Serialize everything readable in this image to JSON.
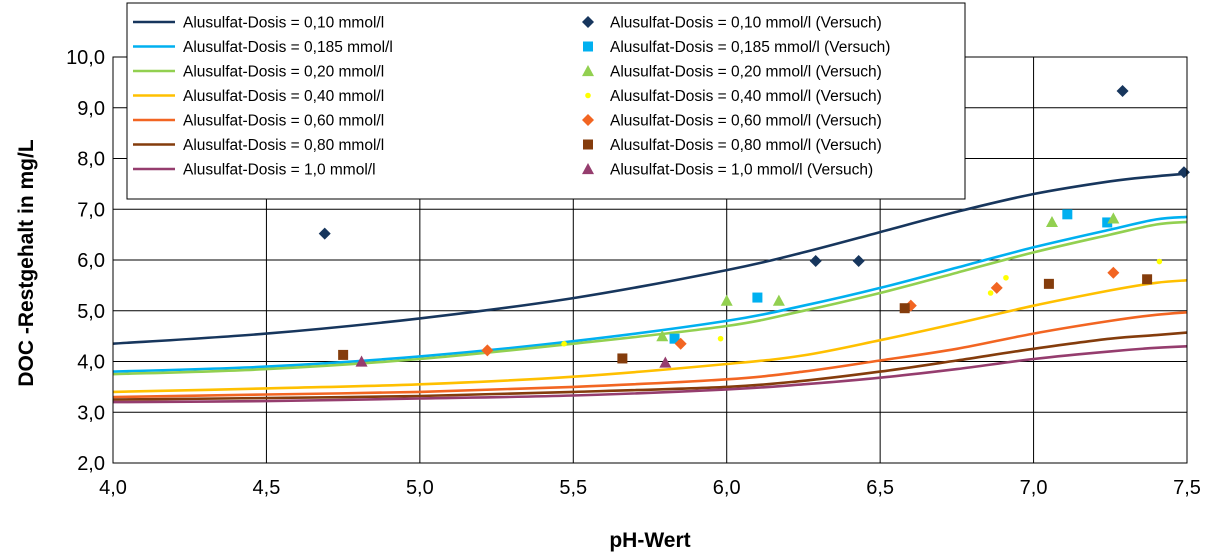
{
  "chart_data": {
    "type": "line",
    "xlabel": "pH-Wert",
    "ylabel": "DOC -Restgehalt in mg/L",
    "xlim": [
      4.0,
      7.5
    ],
    "ylim": [
      2.0,
      10.0
    ],
    "x_ticks": [
      "4,0",
      "4,5",
      "5,0",
      "5,5",
      "6,0",
      "6,5",
      "7,0",
      "7,5"
    ],
    "y_ticks": [
      "2,0",
      "3,0",
      "4,0",
      "5,0",
      "6,0",
      "7,0",
      "8,0",
      "9,0",
      "10,0"
    ],
    "grid": true,
    "legend_position": "top",
    "series": [
      {
        "name": "Alusulfat-Dosis = 0,10 mmol/l",
        "color": "#17365d",
        "x": [
          4.0,
          4.5,
          5.0,
          5.5,
          6.0,
          6.25,
          6.5,
          6.75,
          7.0,
          7.25,
          7.4,
          7.5
        ],
        "y": [
          4.35,
          4.55,
          4.85,
          5.25,
          5.8,
          6.15,
          6.55,
          6.95,
          7.3,
          7.55,
          7.65,
          7.7
        ]
      },
      {
        "name": "Alusulfat-Dosis = 0,185 mmol/l",
        "color": "#00b0f0",
        "x": [
          4.0,
          4.5,
          5.0,
          5.5,
          6.0,
          6.25,
          6.5,
          6.75,
          7.0,
          7.25,
          7.4,
          7.5
        ],
        "y": [
          3.8,
          3.9,
          4.1,
          4.4,
          4.8,
          5.1,
          5.45,
          5.85,
          6.25,
          6.6,
          6.8,
          6.85
        ]
      },
      {
        "name": "Alusulfat-Dosis = 0,20 mmol/l",
        "color": "#92d050",
        "x": [
          4.0,
          4.5,
          5.0,
          5.5,
          6.0,
          6.25,
          6.5,
          6.75,
          7.0,
          7.25,
          7.4,
          7.5
        ],
        "y": [
          3.75,
          3.85,
          4.05,
          4.35,
          4.7,
          5.0,
          5.35,
          5.75,
          6.15,
          6.5,
          6.7,
          6.75
        ]
      },
      {
        "name": "Alusulfat-Dosis = 0,40 mmol/l",
        "color": "#ffc000",
        "x": [
          4.0,
          4.5,
          5.0,
          5.5,
          6.0,
          6.25,
          6.5,
          6.75,
          7.0,
          7.25,
          7.4,
          7.5
        ],
        "y": [
          3.4,
          3.47,
          3.55,
          3.7,
          3.95,
          4.12,
          4.42,
          4.75,
          5.1,
          5.4,
          5.55,
          5.6
        ]
      },
      {
        "name": "Alusulfat-Dosis = 0,60 mmol/l",
        "color": "#f26522",
        "x": [
          4.0,
          4.5,
          5.0,
          5.5,
          6.0,
          6.25,
          6.5,
          6.75,
          7.0,
          7.25,
          7.4,
          7.5
        ],
        "y": [
          3.3,
          3.35,
          3.4,
          3.5,
          3.65,
          3.8,
          4.02,
          4.25,
          4.55,
          4.8,
          4.92,
          4.97
        ]
      },
      {
        "name": "Alusulfat-Dosis = 0,80 mmol/l",
        "color": "#843c0c",
        "x": [
          4.0,
          4.5,
          5.0,
          5.5,
          6.0,
          6.25,
          6.5,
          6.75,
          7.0,
          7.25,
          7.4,
          7.5
        ],
        "y": [
          3.25,
          3.28,
          3.32,
          3.4,
          3.5,
          3.62,
          3.8,
          4.02,
          4.25,
          4.45,
          4.52,
          4.57
        ]
      },
      {
        "name": "Alusulfat-Dosis = 1,0 mmol/l",
        "color": "#953d6e",
        "x": [
          4.0,
          4.5,
          5.0,
          5.5,
          6.0,
          6.25,
          6.5,
          6.75,
          7.0,
          7.25,
          7.4,
          7.5
        ],
        "y": [
          3.2,
          3.22,
          3.27,
          3.33,
          3.45,
          3.55,
          3.68,
          3.85,
          4.05,
          4.2,
          4.27,
          4.3
        ]
      }
    ],
    "points": [
      {
        "name": "Alusulfat-Dosis = 0,10 mmol/l (Versuch)",
        "color": "#17365d",
        "marker": "diamond",
        "x": [
          4.69,
          6.29,
          6.43,
          7.29,
          7.49
        ],
        "y": [
          6.52,
          5.98,
          5.98,
          9.33,
          7.73
        ]
      },
      {
        "name": "Alusulfat-Dosis = 0,185 mmol/l (Versuch)",
        "color": "#00b0f0",
        "marker": "square",
        "x": [
          5.83,
          6.1,
          7.11,
          7.24
        ],
        "y": [
          4.45,
          5.26,
          6.9,
          6.74
        ]
      },
      {
        "name": "Alusulfat-Dosis = 0,20 mmol/l (Versuch)",
        "color": "#92d050",
        "marker": "triangle",
        "x": [
          5.79,
          6.0,
          6.17,
          7.06,
          7.26
        ],
        "y": [
          4.5,
          5.2,
          5.2,
          6.75,
          6.82
        ]
      },
      {
        "name": "Alusulfat-Dosis = 0,40 mmol/l (Versuch)",
        "color": "#ffff00",
        "marker": "dot",
        "x": [
          5.47,
          5.98,
          6.86,
          6.91,
          7.41
        ],
        "y": [
          4.35,
          4.45,
          5.35,
          5.65,
          5.97
        ]
      },
      {
        "name": "Alusulfat-Dosis = 0,60 mmol/l (Versuch)",
        "color": "#f26522",
        "marker": "diamond",
        "x": [
          5.22,
          5.85,
          6.6,
          6.88,
          7.26
        ],
        "y": [
          4.22,
          4.35,
          5.1,
          5.45,
          5.75
        ]
      },
      {
        "name": "Alusulfat-Dosis = 0,80 mmol/l (Versuch)",
        "color": "#843c0c",
        "marker": "square",
        "x": [
          4.75,
          5.66,
          6.58,
          7.05,
          7.37
        ],
        "y": [
          4.13,
          4.06,
          5.05,
          5.53,
          5.62
        ]
      },
      {
        "name": "Alusulfat-Dosis = 1,0 mmol/l (Versuch)",
        "color": "#953d6e",
        "marker": "triangle",
        "x": [
          4.81,
          5.8
        ],
        "y": [
          4.0,
          3.98
        ]
      }
    ]
  }
}
